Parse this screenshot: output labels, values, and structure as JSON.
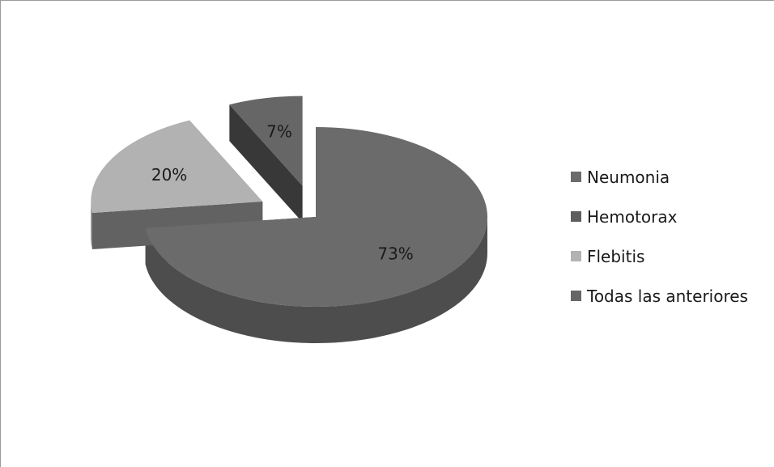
{
  "chart_data": {
    "type": "pie",
    "title": "",
    "categories": [
      "Neumonia",
      "Hemotorax",
      "Flebitis",
      "Todas las anteriores"
    ],
    "values": [
      73,
      0,
      20,
      7
    ],
    "labels": [
      "73%",
      "",
      "20%",
      "7%"
    ],
    "colors": [
      "#6b6b6b",
      "#5e5e5e",
      "#b2b2b2",
      "#666666"
    ],
    "exploded_3d": true,
    "legend_position": "right"
  }
}
